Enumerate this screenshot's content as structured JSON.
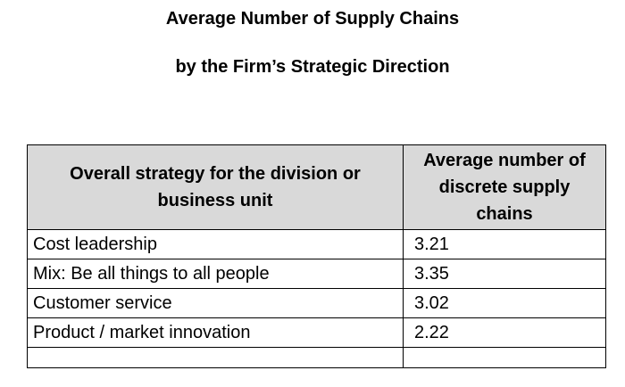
{
  "title": {
    "line1": "Average Number of Supply Chains",
    "line2": "by the Firm’s Strategic Direction"
  },
  "table": {
    "headers": [
      "Overall strategy for the division or business unit",
      "Average number of discrete supply chains"
    ],
    "rows": [
      {
        "strategy": "Cost leadership",
        "value": "3.21"
      },
      {
        "strategy": "Mix: Be all things to all people",
        "value": "3.35"
      },
      {
        "strategy": "Customer service",
        "value": "3.02"
      },
      {
        "strategy": "Product / market innovation",
        "value": "2.22"
      }
    ]
  }
}
